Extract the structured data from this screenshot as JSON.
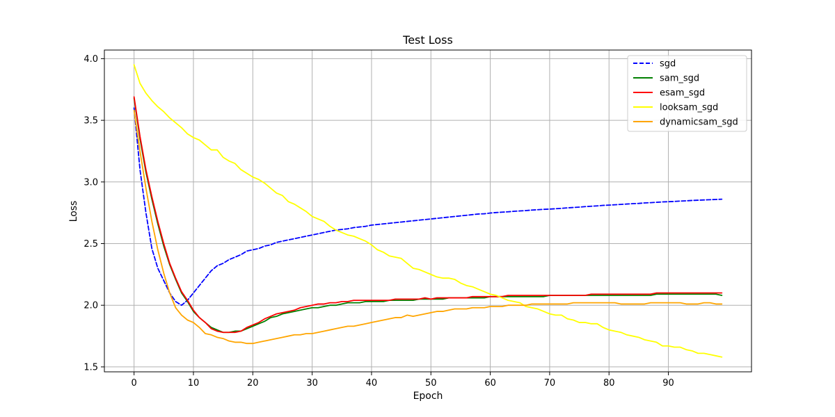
{
  "chart_data": {
    "type": "line",
    "title": "Test Loss",
    "xlabel": "Epoch",
    "ylabel": "Loss",
    "xlim": [
      -5,
      104
    ],
    "ylim": [
      1.46,
      4.07
    ],
    "xticks": [
      0,
      10,
      20,
      30,
      40,
      50,
      60,
      70,
      80,
      90
    ],
    "yticks": [
      1.5,
      2.0,
      2.5,
      3.0,
      3.5,
      4.0
    ],
    "xtick_labels": [
      "0",
      "10",
      "20",
      "30",
      "40",
      "50",
      "60",
      "70",
      "80",
      "90"
    ],
    "ytick_labels": [
      "1.5",
      "2.0",
      "2.5",
      "3.0",
      "3.5",
      "4.0"
    ],
    "grid": true,
    "legend_position": "top-right",
    "x": [
      0,
      1,
      2,
      3,
      4,
      5,
      6,
      7,
      8,
      9,
      10,
      11,
      12,
      13,
      14,
      15,
      16,
      17,
      18,
      19,
      20,
      21,
      22,
      23,
      24,
      25,
      26,
      27,
      28,
      29,
      30,
      31,
      32,
      33,
      34,
      35,
      36,
      37,
      38,
      39,
      40,
      41,
      42,
      43,
      44,
      45,
      46,
      47,
      48,
      49,
      50,
      51,
      52,
      53,
      54,
      55,
      56,
      57,
      58,
      59,
      60,
      61,
      62,
      63,
      64,
      65,
      66,
      67,
      68,
      69,
      70,
      71,
      72,
      73,
      74,
      75,
      76,
      77,
      78,
      79,
      80,
      81,
      82,
      83,
      84,
      85,
      86,
      87,
      88,
      89,
      90,
      91,
      92,
      93,
      94,
      95,
      96,
      97,
      98,
      99
    ],
    "series": [
      {
        "name": "sgd",
        "color": "#0000ff",
        "dash": "dashed",
        "values": [
          3.6,
          3.1,
          2.75,
          2.46,
          2.3,
          2.2,
          2.1,
          2.03,
          2.0,
          2.04,
          2.1,
          2.16,
          2.22,
          2.28,
          2.32,
          2.34,
          2.37,
          2.39,
          2.41,
          2.44,
          2.45,
          2.46,
          2.48,
          2.49,
          2.51,
          2.52,
          2.53,
          2.54,
          2.55,
          2.56,
          2.57,
          2.58,
          2.59,
          2.6,
          2.61,
          2.615,
          2.62,
          2.63,
          2.635,
          2.64,
          2.65,
          2.655,
          2.66,
          2.665,
          2.67,
          2.675,
          2.68,
          2.685,
          2.69,
          2.695,
          2.7,
          2.705,
          2.71,
          2.715,
          2.72,
          2.725,
          2.73,
          2.735,
          2.74,
          2.742,
          2.748,
          2.752,
          2.755,
          2.758,
          2.762,
          2.765,
          2.768,
          2.772,
          2.775,
          2.778,
          2.78,
          2.783,
          2.786,
          2.79,
          2.793,
          2.796,
          2.8,
          2.803,
          2.806,
          2.81,
          2.812,
          2.815,
          2.818,
          2.821,
          2.824,
          2.826,
          2.83,
          2.832,
          2.835,
          2.838,
          2.84,
          2.842,
          2.845,
          2.847,
          2.85,
          2.852,
          2.854,
          2.856,
          2.858,
          2.86
        ]
      },
      {
        "name": "sam_sgd",
        "color": "#008000",
        "dash": "solid",
        "values": [
          3.68,
          3.35,
          3.08,
          2.86,
          2.66,
          2.48,
          2.33,
          2.21,
          2.1,
          2.03,
          1.95,
          1.9,
          1.86,
          1.82,
          1.8,
          1.78,
          1.78,
          1.79,
          1.79,
          1.81,
          1.83,
          1.85,
          1.87,
          1.9,
          1.91,
          1.93,
          1.94,
          1.95,
          1.96,
          1.97,
          1.98,
          1.98,
          1.99,
          2.0,
          2.0,
          2.01,
          2.02,
          2.02,
          2.02,
          2.03,
          2.03,
          2.03,
          2.03,
          2.04,
          2.04,
          2.04,
          2.04,
          2.04,
          2.05,
          2.05,
          2.05,
          2.05,
          2.05,
          2.06,
          2.06,
          2.06,
          2.06,
          2.06,
          2.06,
          2.06,
          2.07,
          2.07,
          2.07,
          2.07,
          2.07,
          2.07,
          2.07,
          2.07,
          2.07,
          2.07,
          2.08,
          2.08,
          2.08,
          2.08,
          2.08,
          2.08,
          2.08,
          2.08,
          2.08,
          2.08,
          2.08,
          2.08,
          2.08,
          2.08,
          2.08,
          2.08,
          2.08,
          2.08,
          2.09,
          2.09,
          2.09,
          2.09,
          2.09,
          2.09,
          2.09,
          2.09,
          2.09,
          2.09,
          2.09,
          2.08
        ]
      },
      {
        "name": "esam_sgd",
        "color": "#ff0000",
        "dash": "solid",
        "values": [
          3.69,
          3.37,
          3.1,
          2.88,
          2.68,
          2.5,
          2.34,
          2.22,
          2.11,
          2.04,
          1.96,
          1.9,
          1.86,
          1.81,
          1.79,
          1.78,
          1.78,
          1.78,
          1.79,
          1.82,
          1.84,
          1.86,
          1.89,
          1.91,
          1.93,
          1.94,
          1.95,
          1.96,
          1.98,
          1.99,
          2.0,
          2.01,
          2.01,
          2.02,
          2.02,
          2.03,
          2.03,
          2.04,
          2.04,
          2.04,
          2.04,
          2.04,
          2.04,
          2.04,
          2.05,
          2.05,
          2.05,
          2.05,
          2.05,
          2.06,
          2.05,
          2.06,
          2.06,
          2.06,
          2.06,
          2.06,
          2.06,
          2.07,
          2.07,
          2.07,
          2.07,
          2.07,
          2.07,
          2.08,
          2.08,
          2.08,
          2.08,
          2.08,
          2.08,
          2.08,
          2.08,
          2.08,
          2.08,
          2.08,
          2.08,
          2.08,
          2.08,
          2.09,
          2.09,
          2.09,
          2.09,
          2.09,
          2.09,
          2.09,
          2.09,
          2.09,
          2.09,
          2.09,
          2.1,
          2.1,
          2.1,
          2.1,
          2.1,
          2.1,
          2.1,
          2.1,
          2.1,
          2.1,
          2.1,
          2.1
        ]
      },
      {
        "name": "looksam_sgd",
        "color": "#ffff00",
        "dash": "solid",
        "values": [
          3.95,
          3.8,
          3.72,
          3.66,
          3.61,
          3.57,
          3.52,
          3.48,
          3.44,
          3.39,
          3.36,
          3.34,
          3.3,
          3.26,
          3.26,
          3.2,
          3.17,
          3.15,
          3.1,
          3.07,
          3.04,
          3.02,
          2.99,
          2.95,
          2.91,
          2.89,
          2.84,
          2.82,
          2.79,
          2.76,
          2.72,
          2.7,
          2.68,
          2.64,
          2.61,
          2.59,
          2.57,
          2.56,
          2.54,
          2.52,
          2.49,
          2.45,
          2.43,
          2.4,
          2.39,
          2.38,
          2.34,
          2.3,
          2.29,
          2.27,
          2.25,
          2.23,
          2.22,
          2.22,
          2.21,
          2.18,
          2.16,
          2.15,
          2.13,
          2.11,
          2.09,
          2.08,
          2.06,
          2.04,
          2.03,
          2.02,
          1.99,
          1.98,
          1.97,
          1.95,
          1.93,
          1.92,
          1.92,
          1.89,
          1.88,
          1.86,
          1.86,
          1.85,
          1.85,
          1.82,
          1.8,
          1.79,
          1.78,
          1.76,
          1.75,
          1.74,
          1.72,
          1.71,
          1.7,
          1.67,
          1.67,
          1.66,
          1.66,
          1.64,
          1.63,
          1.61,
          1.61,
          1.6,
          1.59,
          1.58
        ]
      },
      {
        "name": "dynamicsam_sgd",
        "color": "#ffa500",
        "dash": "solid",
        "values": [
          3.58,
          3.25,
          2.95,
          2.68,
          2.45,
          2.26,
          2.1,
          1.98,
          1.92,
          1.88,
          1.86,
          1.82,
          1.77,
          1.76,
          1.74,
          1.73,
          1.71,
          1.7,
          1.7,
          1.69,
          1.69,
          1.7,
          1.71,
          1.72,
          1.73,
          1.74,
          1.75,
          1.76,
          1.76,
          1.77,
          1.77,
          1.78,
          1.79,
          1.8,
          1.81,
          1.82,
          1.83,
          1.83,
          1.84,
          1.85,
          1.86,
          1.87,
          1.88,
          1.89,
          1.9,
          1.9,
          1.92,
          1.91,
          1.92,
          1.93,
          1.94,
          1.95,
          1.95,
          1.96,
          1.97,
          1.97,
          1.97,
          1.98,
          1.98,
          1.98,
          1.99,
          1.99,
          1.99,
          2.0,
          2.0,
          2.0,
          2.0,
          2.01,
          2.01,
          2.01,
          2.01,
          2.01,
          2.01,
          2.01,
          2.02,
          2.02,
          2.02,
          2.02,
          2.02,
          2.02,
          2.02,
          2.02,
          2.01,
          2.01,
          2.01,
          2.01,
          2.01,
          2.02,
          2.02,
          2.02,
          2.02,
          2.02,
          2.02,
          2.01,
          2.01,
          2.01,
          2.02,
          2.02,
          2.01,
          2.01
        ]
      }
    ]
  }
}
